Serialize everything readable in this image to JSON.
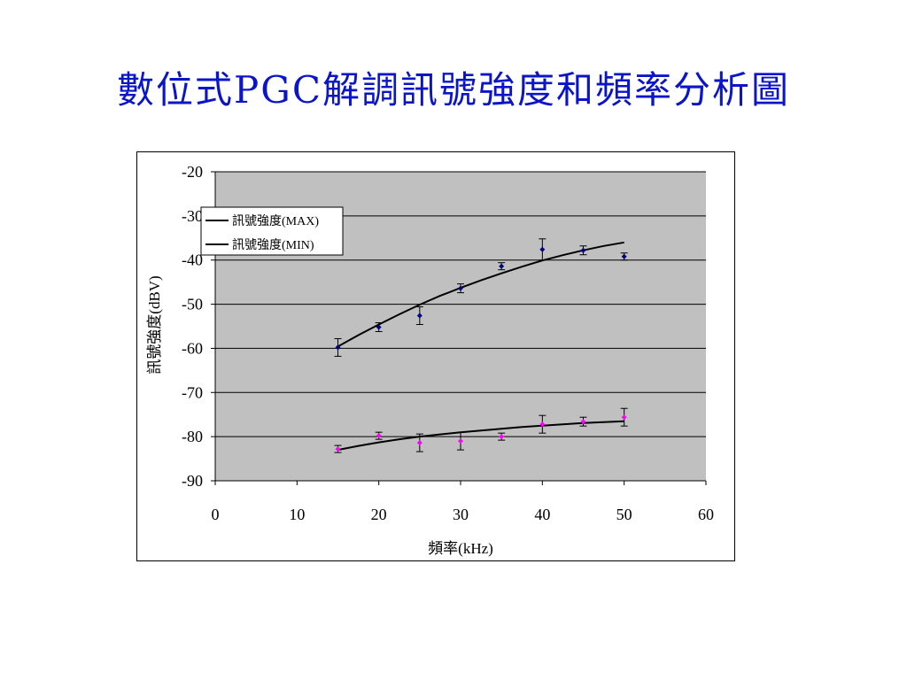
{
  "slide": {
    "title": "數位式PGC解調訊號強度和頻率分析圖"
  },
  "chart_data": {
    "type": "scatter",
    "xlabel": "頻率(kHz)",
    "ylabel": "訊號強度(dBV)",
    "xlim": [
      0,
      60
    ],
    "ylim": [
      -90,
      -20
    ],
    "xticks": [
      0,
      10,
      20,
      30,
      40,
      50,
      60
    ],
    "yticks": [
      -20,
      -30,
      -40,
      -50,
      -60,
      -70,
      -80,
      -90
    ],
    "grid": "horizontal",
    "plot_background": "#c0c0c0",
    "legend": {
      "placement": "top-left",
      "entries": [
        "訊號強度(MAX)",
        "訊號強度(MIN)"
      ]
    },
    "series": [
      {
        "name": "訊號強度(MAX)",
        "marker_color": "#000080",
        "x": [
          15,
          20,
          25,
          30,
          35,
          40,
          45,
          50
        ],
        "y": [
          -59.8,
          -55.2,
          -52.6,
          -46.4,
          -41.4,
          -37.6,
          -37.8,
          -39.2
        ],
        "err": [
          2.0,
          1.0,
          2.0,
          1.0,
          0.8,
          2.4,
          1.0,
          0.8
        ],
        "fit": {
          "x": [
            15,
            17.5,
            20,
            22.5,
            25,
            27.5,
            30,
            32.5,
            35,
            37.5,
            40,
            42.5,
            45,
            47.5,
            50
          ],
          "y": [
            -59.6,
            -57.0,
            -54.6,
            -52.3,
            -50.1,
            -48.1,
            -46.3,
            -44.6,
            -43.0,
            -41.5,
            -40.1,
            -38.9,
            -37.8,
            -36.8,
            -36.0
          ]
        }
      },
      {
        "name": "訊號強度(MIN)",
        "marker_color": "#ff00ff",
        "x": [
          15,
          20,
          25,
          30,
          35,
          40,
          45,
          50
        ],
        "y": [
          -82.8,
          -79.8,
          -81.4,
          -81.0,
          -80.0,
          -77.2,
          -76.6,
          -75.6
        ],
        "err": [
          0.8,
          0.8,
          2.0,
          2.0,
          0.8,
          2.0,
          1.0,
          2.0
        ],
        "fit": {
          "x": [
            15,
            17.5,
            20,
            22.5,
            25,
            27.5,
            30,
            32.5,
            35,
            37.5,
            40,
            42.5,
            45,
            47.5,
            50
          ],
          "y": [
            -83.0,
            -82.1,
            -81.3,
            -80.6,
            -80.0,
            -79.5,
            -79.0,
            -78.6,
            -78.2,
            -77.8,
            -77.5,
            -77.2,
            -76.9,
            -76.7,
            -76.5
          ]
        }
      }
    ]
  }
}
